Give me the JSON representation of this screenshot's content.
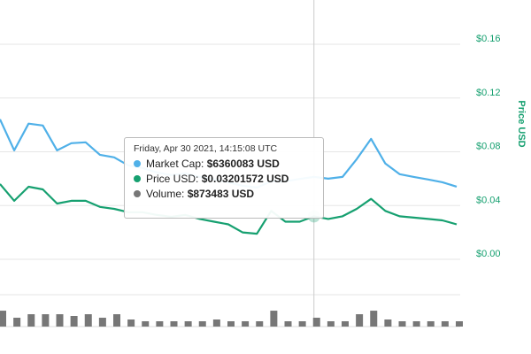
{
  "chart_data": {
    "type": "line",
    "y_label": "Price USD",
    "ylim": [
      0,
      0.16
    ],
    "yticks": [
      {
        "value": 0,
        "label": "$0.00"
      },
      {
        "value": 0.04,
        "label": "$0.04"
      },
      {
        "value": 0.08,
        "label": "$0.08"
      },
      {
        "value": 0.12,
        "label": "$0.12"
      },
      {
        "value": 0.16,
        "label": "$0.16"
      }
    ],
    "y2lim": [
      0,
      16600000
    ],
    "y3lim": [
      0,
      1750000
    ],
    "grid": true,
    "series": [
      {
        "name": "Market Cap",
        "color": "#4fb0e8",
        "axis": "y2",
        "values": [
          10810000,
          8410000,
          10470000,
          10330000,
          8410000,
          8960000,
          9030000,
          8070000,
          7870000,
          7250000,
          7050000,
          6700000,
          6500000,
          6630000,
          6360000,
          6160000,
          5950000,
          5680000,
          5540000,
          6020000,
          6020000,
          6200000,
          6360083,
          6220000,
          6360000,
          7730000,
          9300000,
          7390000,
          6570000,
          6360000,
          6160000,
          5950000,
          5610000
        ]
      },
      {
        "name": "Price USD",
        "color": "#16a070",
        "axis": "y",
        "values": [
          0.056,
          0.0435,
          0.054,
          0.052,
          0.0415,
          0.0435,
          0.0435,
          0.039,
          0.0375,
          0.035,
          0.035,
          0.033,
          0.0316,
          0.033,
          0.03,
          0.028,
          0.026,
          0.02,
          0.019,
          0.036,
          0.028,
          0.028,
          0.03201572,
          0.03,
          0.032,
          0.0375,
          0.045,
          0.036,
          0.032,
          0.031,
          0.03,
          0.029,
          0.026
        ]
      },
      {
        "name": "Volume",
        "color": "#777777",
        "axis": "y3",
        "kind": "bar",
        "values": [
          1570000,
          873483,
          1220000,
          1220000,
          1220000,
          1050000,
          1220000,
          873000,
          1220000,
          699000,
          524000,
          524000,
          524000,
          524000,
          524000,
          699000,
          524000,
          524000,
          524000,
          1570000,
          524000,
          524000,
          873483,
          524000,
          524000,
          1220000,
          1570000,
          699000,
          524000,
          524000,
          524000,
          524000,
          524000
        ]
      }
    ],
    "hover_index": 22,
    "tooltip": {
      "date": "Friday, Apr 30 2021, 14:15:08 UTC",
      "rows": [
        {
          "label": "Market Cap:",
          "value": "$6360083 USD"
        },
        {
          "label": "Price USD:",
          "value": "$0.03201572 USD"
        },
        {
          "label": "Volume:",
          "value": "$873483 USD"
        }
      ]
    }
  }
}
